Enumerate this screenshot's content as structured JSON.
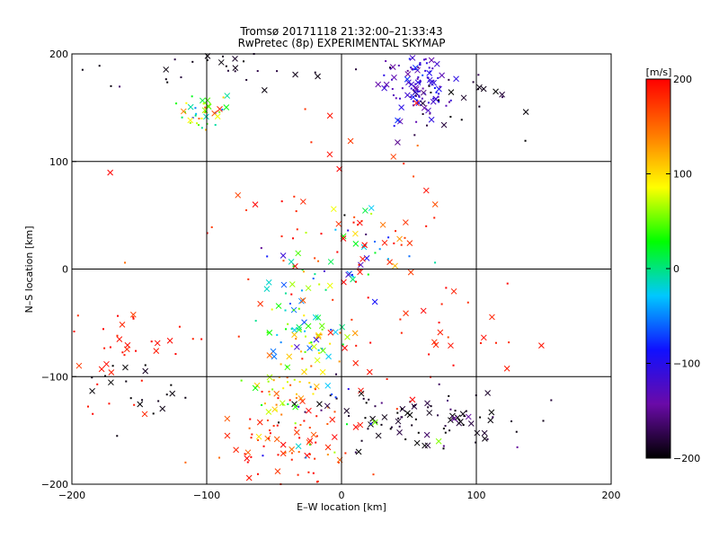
{
  "chart_data": {
    "type": "scatter",
    "title": "Tromsø 20171118 21:32:00–21:33:43",
    "subtitle": "RwPretec (8p) EXPERIMENTAL SKYMAP",
    "xlabel": "E–W location [km]",
    "ylabel": "N–S location [km]",
    "xlim": [
      -200,
      200
    ],
    "ylim": [
      -200,
      200
    ],
    "xticks": [
      "−200",
      "−100",
      "0",
      "100",
      "200"
    ],
    "yticks": [
      "−200",
      "−100",
      "0",
      "100",
      "200"
    ],
    "grid": true,
    "colorbar": {
      "label": "[m/s]",
      "range": [
        -200,
        200
      ],
      "ticks": [
        "200",
        "100",
        "0",
        "−100",
        "−200"
      ],
      "colormap": [
        "#000000",
        "#6a0aa8",
        "#1010ff",
        "#00c8ff",
        "#00ff00",
        "#ffff00",
        "#ff7700",
        "#ff0000"
      ]
    },
    "clusters": [
      {
        "cx": -100,
        "cy": 148,
        "sx": 10,
        "sy": 9,
        "n": 40,
        "v": 40,
        "vs": 60
      },
      {
        "cx": -95,
        "cy": 185,
        "sx": 40,
        "sy": 10,
        "n": 30,
        "v": -190,
        "vs": 10
      },
      {
        "cx": 55,
        "cy": 172,
        "sx": 13,
        "sy": 16,
        "n": 110,
        "v": -120,
        "vs": 20
      },
      {
        "cx": 100,
        "cy": 155,
        "sx": 25,
        "sy": 18,
        "n": 25,
        "v": -190,
        "vs": 10
      },
      {
        "cx": -15,
        "cy": 60,
        "sx": 55,
        "sy": 60,
        "n": 45,
        "v": 180,
        "vs": 20
      },
      {
        "cx": 10,
        "cy": 25,
        "sx": 25,
        "sy": 25,
        "n": 35,
        "v": 0,
        "vs": 90
      },
      {
        "cx": -30,
        "cy": -30,
        "sx": 15,
        "sy": 25,
        "n": 40,
        "v": -10,
        "vs": 70
      },
      {
        "cx": -25,
        "cy": -65,
        "sx": 15,
        "sy": 12,
        "n": 45,
        "v": 40,
        "vs": 60
      },
      {
        "cx": -40,
        "cy": -110,
        "sx": 12,
        "sy": 18,
        "n": 45,
        "v": 100,
        "vs": 40
      },
      {
        "cx": -45,
        "cy": -165,
        "sx": 25,
        "sy": 18,
        "n": 70,
        "v": 180,
        "vs": 20
      },
      {
        "cx": 50,
        "cy": -140,
        "sx": 35,
        "sy": 12,
        "n": 60,
        "v": -190,
        "vs": 10
      },
      {
        "cx": 90,
        "cy": -140,
        "sx": 25,
        "sy": 15,
        "n": 30,
        "v": -180,
        "vs": 20
      },
      {
        "cx": -160,
        "cy": -85,
        "sx": 25,
        "sy": 25,
        "n": 40,
        "v": 190,
        "vs": 10
      },
      {
        "cx": -150,
        "cy": -110,
        "sx": 20,
        "sy": 12,
        "n": 20,
        "v": -195,
        "vs": 5
      },
      {
        "cx": 60,
        "cy": -60,
        "sx": 40,
        "sy": 35,
        "n": 40,
        "v": 190,
        "vs": 10
      },
      {
        "cx": -10,
        "cy": -150,
        "sx": 35,
        "sy": 30,
        "n": 30,
        "v": -80,
        "vs": 120
      },
      {
        "cx": 30,
        "cy": 20,
        "sx": 30,
        "sy": 20,
        "n": 20,
        "v": 190,
        "vs": 10
      }
    ]
  }
}
